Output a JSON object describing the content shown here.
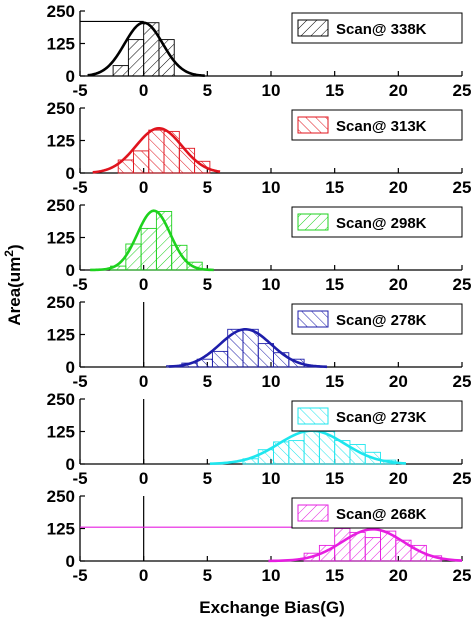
{
  "chart_data": {
    "type": "bar",
    "xlabel": "Exchange Bias(G)",
    "ylabel": {
      "base": "Area(um",
      "sup": "2",
      "close": ")"
    },
    "xlim": [
      -5,
      25
    ],
    "ylim": [
      0,
      250
    ],
    "xticks": [
      "-5",
      "0",
      "5",
      "10",
      "15",
      "20",
      "25"
    ],
    "yticks": [
      "0",
      "125",
      "250"
    ],
    "bin_width": 1.2,
    "panels": [
      {
        "legend": "Scan@ 338K",
        "color": "#000000",
        "hatch_angle": 45,
        "bins": [
          -2.4,
          -1.2,
          0,
          1.2
        ],
        "values": [
          40,
          140,
          205,
          140
        ],
        "fit": {
          "center": 0,
          "sigma": 1.5,
          "amplitude": 205,
          "range": [
            -4.4,
            4.8
          ]
        },
        "hline": {
          "y": 210,
          "from": -5,
          "to": 0
        },
        "vline_x": null
      },
      {
        "legend": "Scan@ 313K",
        "color": "#e0141e",
        "hatch_angle": -45,
        "bins": [
          -2.0,
          -0.8,
          0.4,
          1.6,
          2.8,
          4.0
        ],
        "values": [
          50,
          85,
          165,
          160,
          95,
          45
        ],
        "fit": {
          "center": 1.2,
          "sigma": 1.8,
          "amplitude": 172,
          "range": [
            -4.0,
            6.0
          ]
        },
        "hline": null,
        "vline_x": null
      },
      {
        "legend": "Scan@ 298K",
        "color": "#1ed21e",
        "hatch_angle": 45,
        "bins": [
          -2.6,
          -1.4,
          -0.2,
          1.0,
          2.2,
          3.4
        ],
        "values": [
          15,
          100,
          160,
          225,
          95,
          30
        ],
        "fit": {
          "center": 0.8,
          "sigma": 1.3,
          "amplitude": 228,
          "range": [
            -4.2,
            5.5
          ]
        },
        "hline": null,
        "vline_x": null
      },
      {
        "legend": "Scan@ 278K",
        "color": "#1e1eaa",
        "hatch_angle": -45,
        "bins": [
          1.8,
          3.0,
          4.2,
          5.4,
          6.6,
          7.8,
          9.0,
          10.2,
          11.4,
          12.6
        ],
        "values": [
          5,
          15,
          30,
          60,
          145,
          145,
          90,
          55,
          30,
          5
        ],
        "fit": {
          "center": 8,
          "sigma": 2.0,
          "amplitude": 145,
          "range": [
            2.0,
            14.4
          ]
        },
        "hline": null,
        "vline_x": 0
      },
      {
        "legend": "Scan@ 273K",
        "color": "#1ee6ee",
        "hatch_angle": -45,
        "bins": [
          7.8,
          9.0,
          10.2,
          11.4,
          12.6,
          13.8,
          15.0,
          16.2,
          17.4,
          18.6
        ],
        "values": [
          20,
          55,
          85,
          90,
          125,
          125,
          90,
          75,
          45,
          15
        ],
        "fit": {
          "center": 13.2,
          "sigma": 2.6,
          "amplitude": 128,
          "range": [
            5.2,
            20.6
          ]
        },
        "hline": null,
        "vline_x": 0
      },
      {
        "legend": "Scan@ 268K",
        "color": "#e61ee0",
        "hatch_angle": 45,
        "bins": [
          12.6,
          13.8,
          15.0,
          16.2,
          17.4,
          18.6,
          19.8,
          21.0,
          22.2
        ],
        "values": [
          30,
          60,
          125,
          110,
          90,
          115,
          80,
          60,
          20
        ],
        "fit": {
          "center": 18,
          "sigma": 2.4,
          "amplitude": 122,
          "range": [
            9.8,
            25
          ]
        },
        "hline": {
          "y": 130,
          "from": -5,
          "to": 25
        },
        "vline_x": 0
      }
    ]
  }
}
